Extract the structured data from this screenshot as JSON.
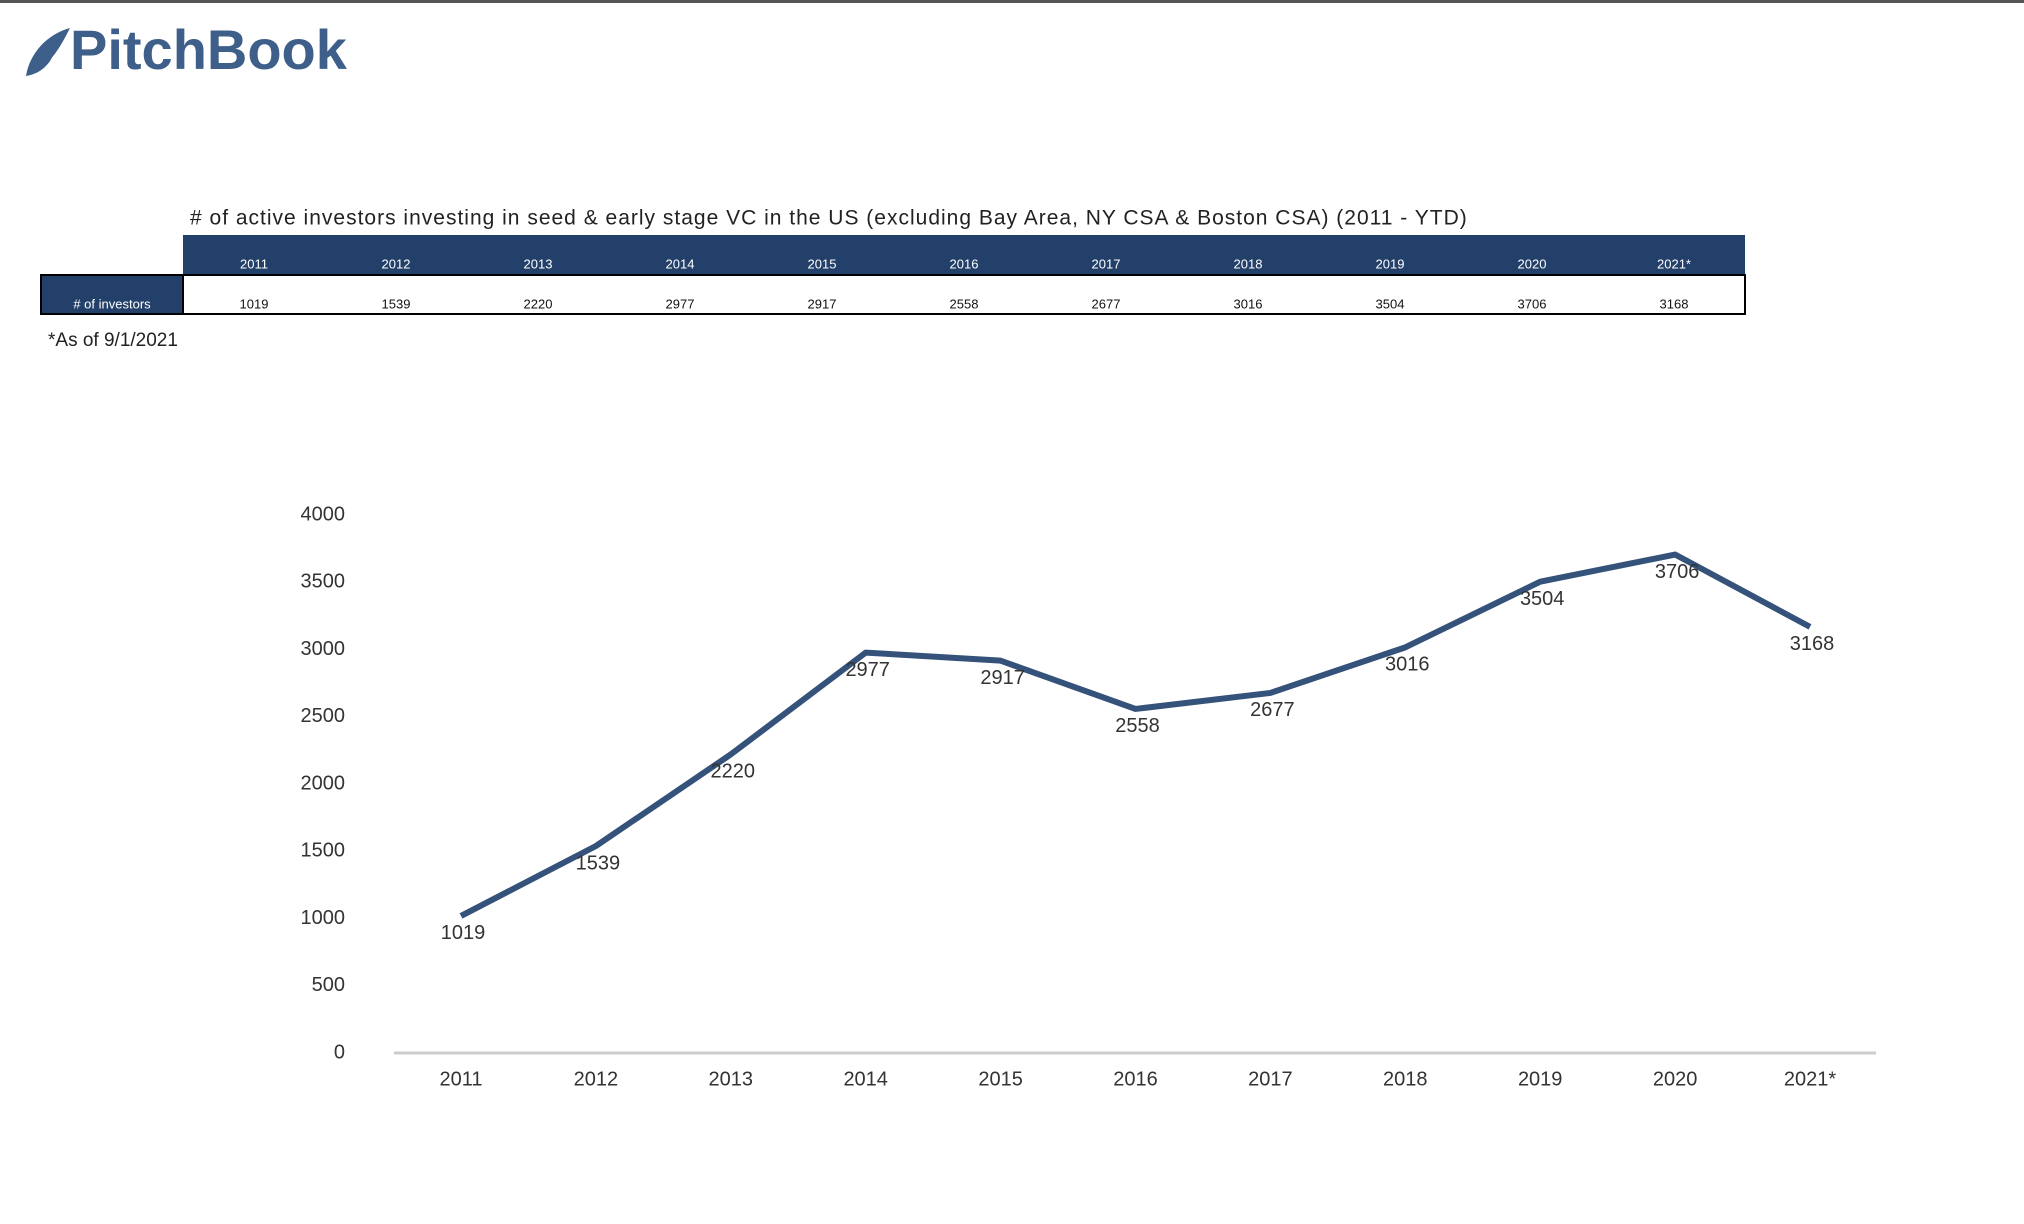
{
  "logo": "PitchBook",
  "table": {
    "title": "# of active investors investing in seed & early stage VC in the US (excluding Bay Area, NY CSA & Boston CSA) (2011 - YTD)",
    "columns": [
      "2011",
      "2012",
      "2013",
      "2014",
      "2015",
      "2016",
      "2017",
      "2018",
      "2019",
      "2020",
      "2021*"
    ],
    "row_label": "# of investors",
    "values": [
      1019,
      1539,
      2220,
      2977,
      2917,
      2558,
      2677,
      3016,
      3504,
      3706,
      3168
    ],
    "note": "*As of 9/1/2021"
  },
  "chart_data": {
    "type": "line",
    "categories": [
      "2011",
      "2012",
      "2013",
      "2014",
      "2015",
      "2016",
      "2017",
      "2018",
      "2019",
      "2020",
      "2021*"
    ],
    "values": [
      1019,
      1539,
      2220,
      2977,
      2917,
      2558,
      2677,
      3016,
      3504,
      3706,
      3168
    ],
    "color": "#34527a",
    "ylim": [
      0,
      4000
    ],
    "yticks": [
      0,
      500,
      1000,
      1500,
      2000,
      2500,
      3000,
      3500,
      4000
    ],
    "grid": false
  }
}
